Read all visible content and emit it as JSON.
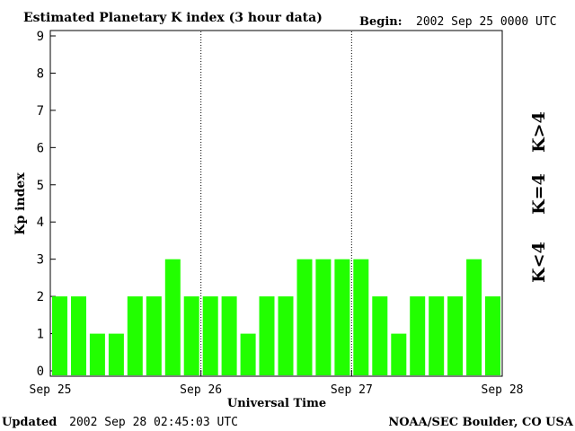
{
  "header": {
    "title": "Estimated Planetary K index (3 hour data)",
    "begin_label": "Begin:",
    "begin_value": "2002 Sep 25 0000 UTC"
  },
  "footer": {
    "updated_label": "Updated",
    "updated_value": "2002 Sep 28 02:45:03 UTC",
    "source": "NOAA/SEC Boulder, CO USA"
  },
  "legend": {
    "high": "K>4",
    "equal": "K=4",
    "low": "K<4",
    "colors": {
      "high": "#ff2a00",
      "equal": "#ffd700",
      "low": "#22ff00"
    }
  },
  "chart_data": {
    "type": "bar",
    "xlabel": "Universal Time",
    "ylabel": "Kp index",
    "ylim": [
      0,
      9
    ],
    "y_ticks": [
      "0",
      "1",
      "2",
      "3",
      "4",
      "5",
      "6",
      "7",
      "8",
      "9"
    ],
    "x_ticks": [
      "Sep 25",
      "Sep 26",
      "Sep 27",
      "Sep 28"
    ],
    "day_dividers": [
      "Sep 26",
      "Sep 27"
    ],
    "bar_color": "#22ff00",
    "values": [
      2,
      2,
      1,
      1,
      2,
      2,
      3,
      2,
      2,
      2,
      1,
      2,
      2,
      3,
      3,
      3,
      3,
      2,
      1,
      2,
      2,
      2,
      3,
      2
    ]
  }
}
